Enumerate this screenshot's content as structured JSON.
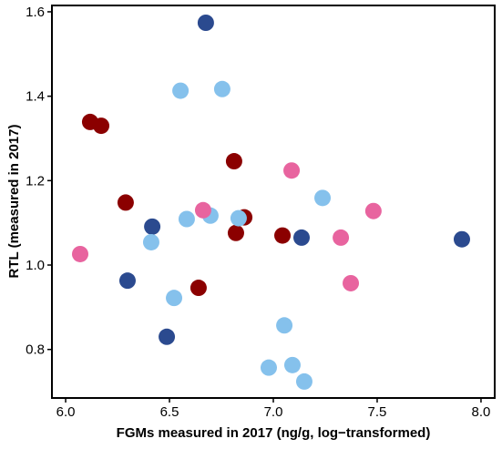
{
  "chart_data": {
    "type": "scatter",
    "x_label": "FGMs measured in 2017 (ng/g, log−transformed)",
    "y_label": "RTL (measured in 2017)",
    "xlim": [
      5.934,
      8.066
    ],
    "ylim": [
      0.685,
      1.615
    ],
    "xticks": [
      {
        "value": 6,
        "label": "6.0"
      },
      6.5,
      {
        "value": 7,
        "label": "7.0"
      },
      7.5,
      {
        "value": 8,
        "label": "8.0"
      }
    ],
    "yticks": [
      0.8,
      {
        "value": 1,
        "label": "1.0"
      },
      1.2,
      1.4,
      1.6
    ],
    "grid": false,
    "series": [
      {
        "color": "#2b4a8f",
        "x": [
          6.675,
          6.417,
          6.298,
          6.487,
          7.136,
          7.908
        ],
        "values": [
          1.574,
          1.091,
          0.963,
          0.83,
          1.065,
          1.061
        ]
      },
      {
        "color": "#8b0000",
        "x": [
          6.118,
          6.171,
          6.289,
          6.811,
          6.86,
          6.82,
          7.044,
          6.64
        ],
        "values": [
          1.339,
          1.33,
          1.148,
          1.246,
          1.113,
          1.076,
          1.07,
          0.946
        ]
      },
      {
        "color": "#85c1ec",
        "x": [
          6.553,
          6.754,
          6.583,
          6.697,
          6.833,
          7.237,
          6.412,
          6.522,
          7.053,
          6.978,
          7.092,
          7.149
        ],
        "values": [
          1.413,
          1.417,
          1.109,
          1.117,
          1.111,
          1.159,
          1.054,
          0.922,
          0.857,
          0.757,
          0.763,
          0.724
        ]
      },
      {
        "color": "#e8649f",
        "x": [
          6.07,
          6.662,
          7.088,
          7.325,
          7.482,
          7.373
        ],
        "values": [
          1.026,
          1.13,
          1.224,
          1.065,
          1.128,
          0.957
        ]
      }
    ]
  }
}
